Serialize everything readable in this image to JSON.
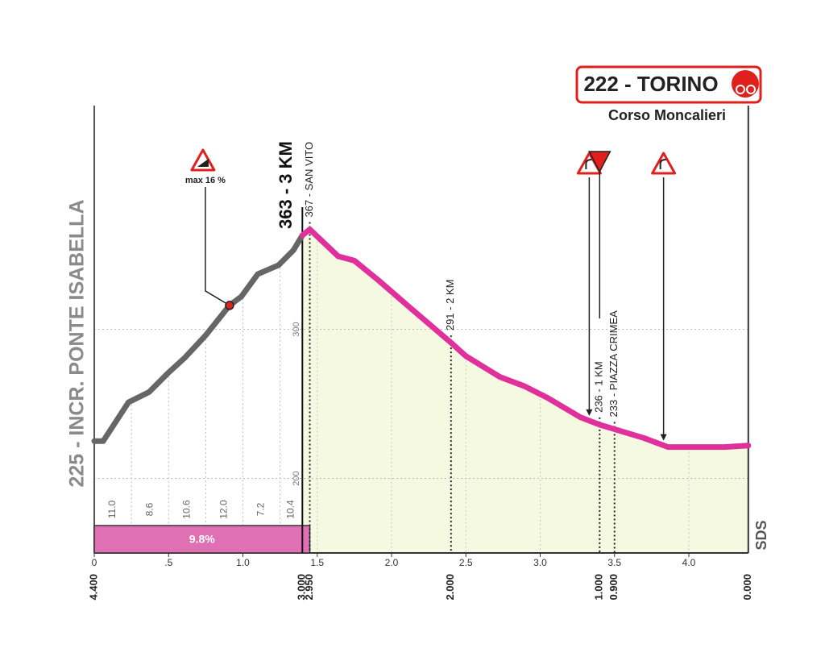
{
  "chart_data": {
    "type": "profile",
    "x": [
      0,
      0.06,
      0.23,
      0.37,
      0.5,
      0.61,
      0.75,
      0.91,
      0.99,
      1.1,
      1.24,
      1.34,
      1.4,
      1.45,
      1.64,
      1.75,
      1.91,
      2.13,
      2.4,
      2.5,
      2.73,
      2.89,
      3.05,
      3.27,
      3.4,
      3.5,
      3.7,
      3.86,
      4.24,
      4.4
    ],
    "series": [
      {
        "color": "#666666",
        "values": [
          225,
          225,
          251,
          258,
          271,
          281,
          296,
          316,
          322,
          337,
          343,
          353,
          363,
          null,
          null,
          null,
          null,
          null,
          null,
          null,
          null,
          null,
          null,
          null,
          null,
          null,
          null,
          null,
          null,
          null
        ]
      },
      {
        "color": "#e0309c",
        "values": [
          null,
          null,
          null,
          null,
          null,
          null,
          null,
          null,
          null,
          null,
          null,
          null,
          363,
          367,
          349,
          346,
          333,
          314,
          291,
          282,
          268,
          262,
          254,
          241,
          236,
          233,
          227,
          221,
          221,
          222
        ]
      }
    ],
    "area_color": "#f5f9e1",
    "xlim": [
      0,
      4.4
    ],
    "ylim": [
      150,
      450
    ],
    "xticks": [
      0,
      {
        "value": 0.5,
        "label": ".5"
      },
      {
        "value": 1,
        "label": "1.0"
      },
      {
        "value": 1.5,
        "label": "1.5"
      },
      {
        "value": 2,
        "label": "2.0"
      },
      {
        "value": 2.5,
        "label": "2.5"
      },
      {
        "value": 3,
        "label": "3.0"
      },
      {
        "value": 3.5,
        "label": "3.5"
      },
      {
        "value": 4,
        "label": "4.0"
      }
    ],
    "yticks": [
      200,
      300
    ],
    "grid": true,
    "x2lim": [
      4.4,
      0
    ],
    "x2ticks": [
      {
        "value": 4.4,
        "label": "4.400"
      },
      {
        "value": 3,
        "label": "3.000"
      },
      {
        "value": 2.95,
        "label": "2.950"
      },
      {
        "value": 2,
        "label": "2.000"
      },
      {
        "value": 1,
        "label": "1.000"
      },
      {
        "value": 0.9,
        "label": "0.900"
      },
      {
        "value": 0,
        "label": "0.000"
      }
    ],
    "start_label": "225 - INCR. PONTE ISABELLA",
    "finish": {
      "label": "222 - TORINO",
      "subtitle": "Corso Moncalieri",
      "color": "#e0201c"
    },
    "km_marker": {
      "x": 1.4,
      "label": "363 - 3 KM"
    },
    "annotations": [
      {
        "x": 1.45,
        "label": "367 - SAN VITO"
      },
      {
        "x": 2.4,
        "label": "291 - 2 KM"
      },
      {
        "x": 3.4,
        "label": "236 - 1 KM"
      },
      {
        "x": 3.5,
        "label": "233 - PIAZZA CRIMEA"
      }
    ],
    "steep_point": {
      "x": 0.91,
      "y": 316,
      "label": "max 16 %"
    },
    "curves": [
      3.33,
      3.83
    ],
    "flamme_rouge": 3.4,
    "gradients": {
      "bins": [
        0,
        0.25,
        0.5,
        0.75,
        1,
        1.25,
        1.4
      ],
      "values": [
        11,
        8.6,
        10.6,
        12,
        7.2,
        10.4
      ],
      "value_labels": [
        "11.0",
        "8.6",
        "10.6",
        "12.0",
        "7.2",
        "10.4"
      ]
    },
    "average_gradient": {
      "x": [
        0,
        1.45
      ],
      "value": 9.8,
      "label": "9.8%",
      "color": "#e070b4"
    },
    "logo": "SDS"
  }
}
